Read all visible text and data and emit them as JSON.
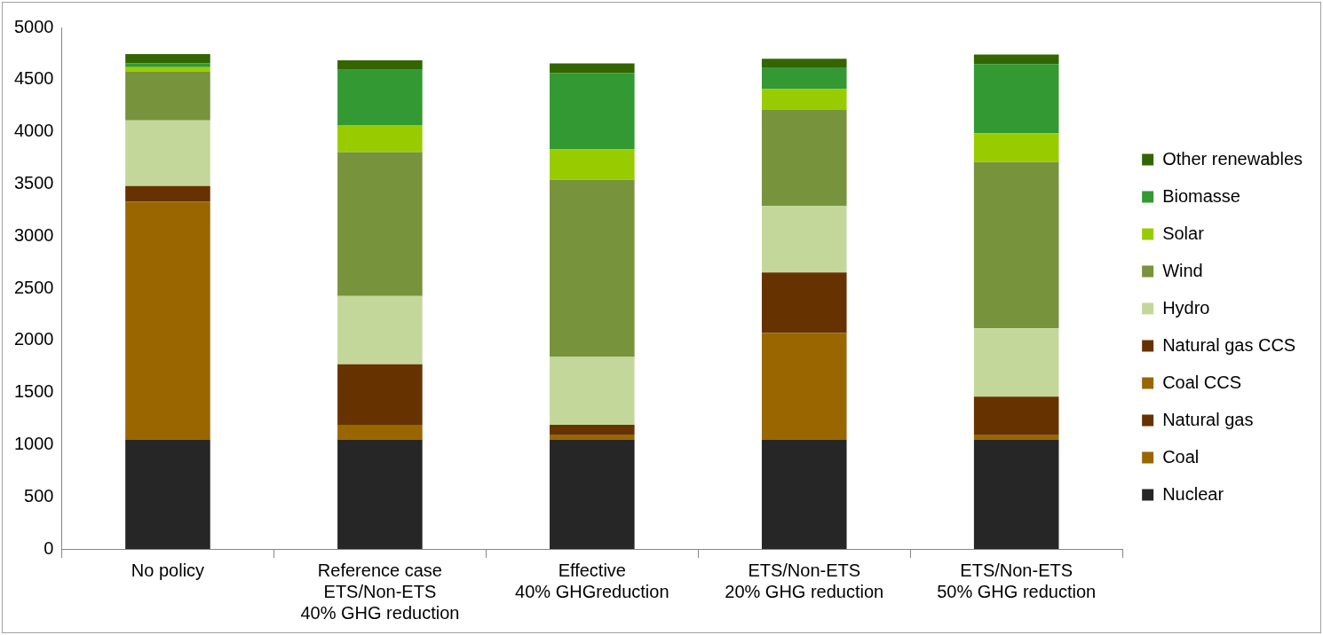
{
  "chart_data": {
    "type": "bar",
    "stacked": true,
    "legend": "right",
    "grid": false,
    "categories": [
      "No policy",
      "Reference case\nETS/Non-ETS\n40% GHG reduction",
      "Effective\n40% GHGreduction",
      "ETS/Non-ETS\n20% GHG reduction",
      "ETS/Non-ETS\n50% GHG reduction"
    ],
    "ylim": [
      0,
      5000
    ],
    "yticks": [
      0,
      500,
      1000,
      1500,
      2000,
      2500,
      3000,
      3500,
      4000,
      4500,
      5000
    ],
    "series": [
      {
        "name": "Nuclear",
        "color": "#262626",
        "values": [
          1050,
          1050,
          1050,
          1050,
          1050
        ]
      },
      {
        "name": "Coal",
        "color": "#996600",
        "values": [
          2280,
          140,
          40,
          1020,
          40
        ]
      },
      {
        "name": "Natural gas",
        "color": "#663300",
        "values": [
          150,
          580,
          0,
          580,
          0
        ]
      },
      {
        "name": "Coal CCS",
        "color": "#996600",
        "values": [
          0,
          0,
          0,
          0,
          0
        ]
      },
      {
        "name": "Natural gas CCS",
        "color": "#663300",
        "values": [
          0,
          0,
          100,
          0,
          370
        ]
      },
      {
        "name": "Hydro",
        "color": "#c4d79b",
        "values": [
          630,
          655,
          650,
          640,
          655
        ]
      },
      {
        "name": "Wind",
        "color": "#77933c",
        "values": [
          470,
          1380,
          1700,
          920,
          1595
        ]
      },
      {
        "name": "Solar",
        "color": "#99cc00",
        "values": [
          40,
          260,
          290,
          200,
          275
        ]
      },
      {
        "name": "Biomasse",
        "color": "#339933",
        "values": [
          35,
          530,
          735,
          200,
          665
        ]
      },
      {
        "name": "Other renewables",
        "color": "#336600",
        "values": [
          90,
          90,
          90,
          90,
          90
        ]
      }
    ]
  }
}
